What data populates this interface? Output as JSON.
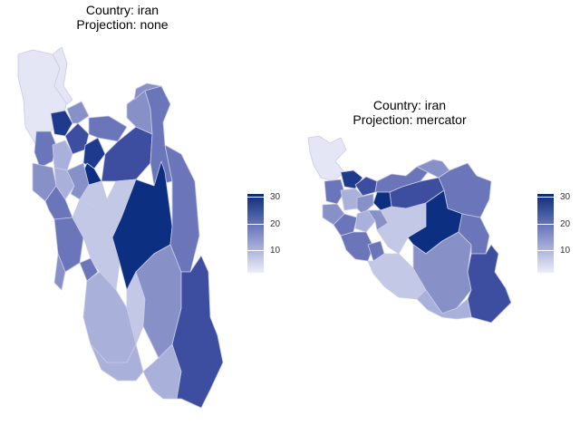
{
  "maps": [
    {
      "title_line1": "Country: iran",
      "title_line2": "Projection: none"
    },
    {
      "title_line1": "Country: iran",
      "title_line2": "Projection: mercator"
    }
  ],
  "legend": {
    "ticks": [
      "30",
      "20",
      "10"
    ],
    "range": [
      0,
      32
    ],
    "color_low": "#eceef9",
    "color_mid": "#7480c0",
    "color_high": "#0a2a7a"
  },
  "palette": {
    "lightest": "#e4e6f5",
    "light": "#c3c8e6",
    "lightmid": "#a9b0da",
    "mid": "#8791c8",
    "midstrong": "#6a76b9",
    "strong": "#3d4ea0",
    "dark": "#1d3a8c",
    "darkest": "#0c2f82"
  }
}
